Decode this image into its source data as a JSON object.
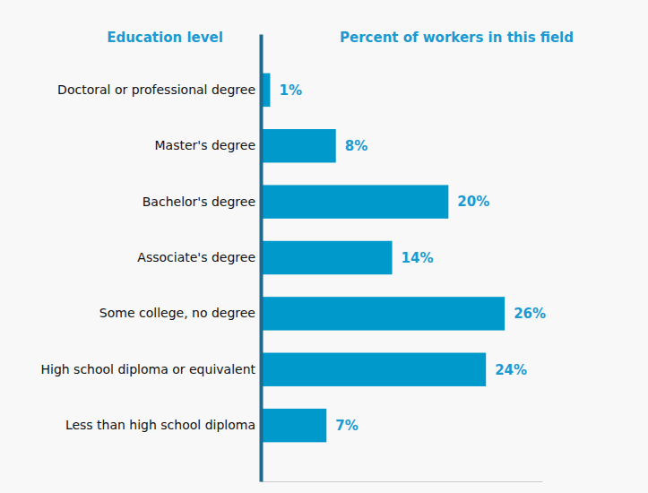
{
  "chart_data": {
    "type": "bar",
    "orientation": "horizontal",
    "y_label": "Education level",
    "x_label": "Percent of workers in this field",
    "categories": [
      "Doctoral or professional degree",
      "Master's degree",
      "Bachelor's degree",
      "Associate's degree",
      "Some college, no degree",
      "High school diploma or equivalent",
      "Less than high school diploma"
    ],
    "values": [
      1,
      8,
      20,
      14,
      26,
      24,
      7
    ],
    "value_labels": [
      "1%",
      "8%",
      "20%",
      "14%",
      "26%",
      "24%",
      "7%"
    ],
    "color": "#0099cc",
    "xlim": [
      0,
      30
    ],
    "data_labels": true,
    "tick_labels": "y"
  }
}
